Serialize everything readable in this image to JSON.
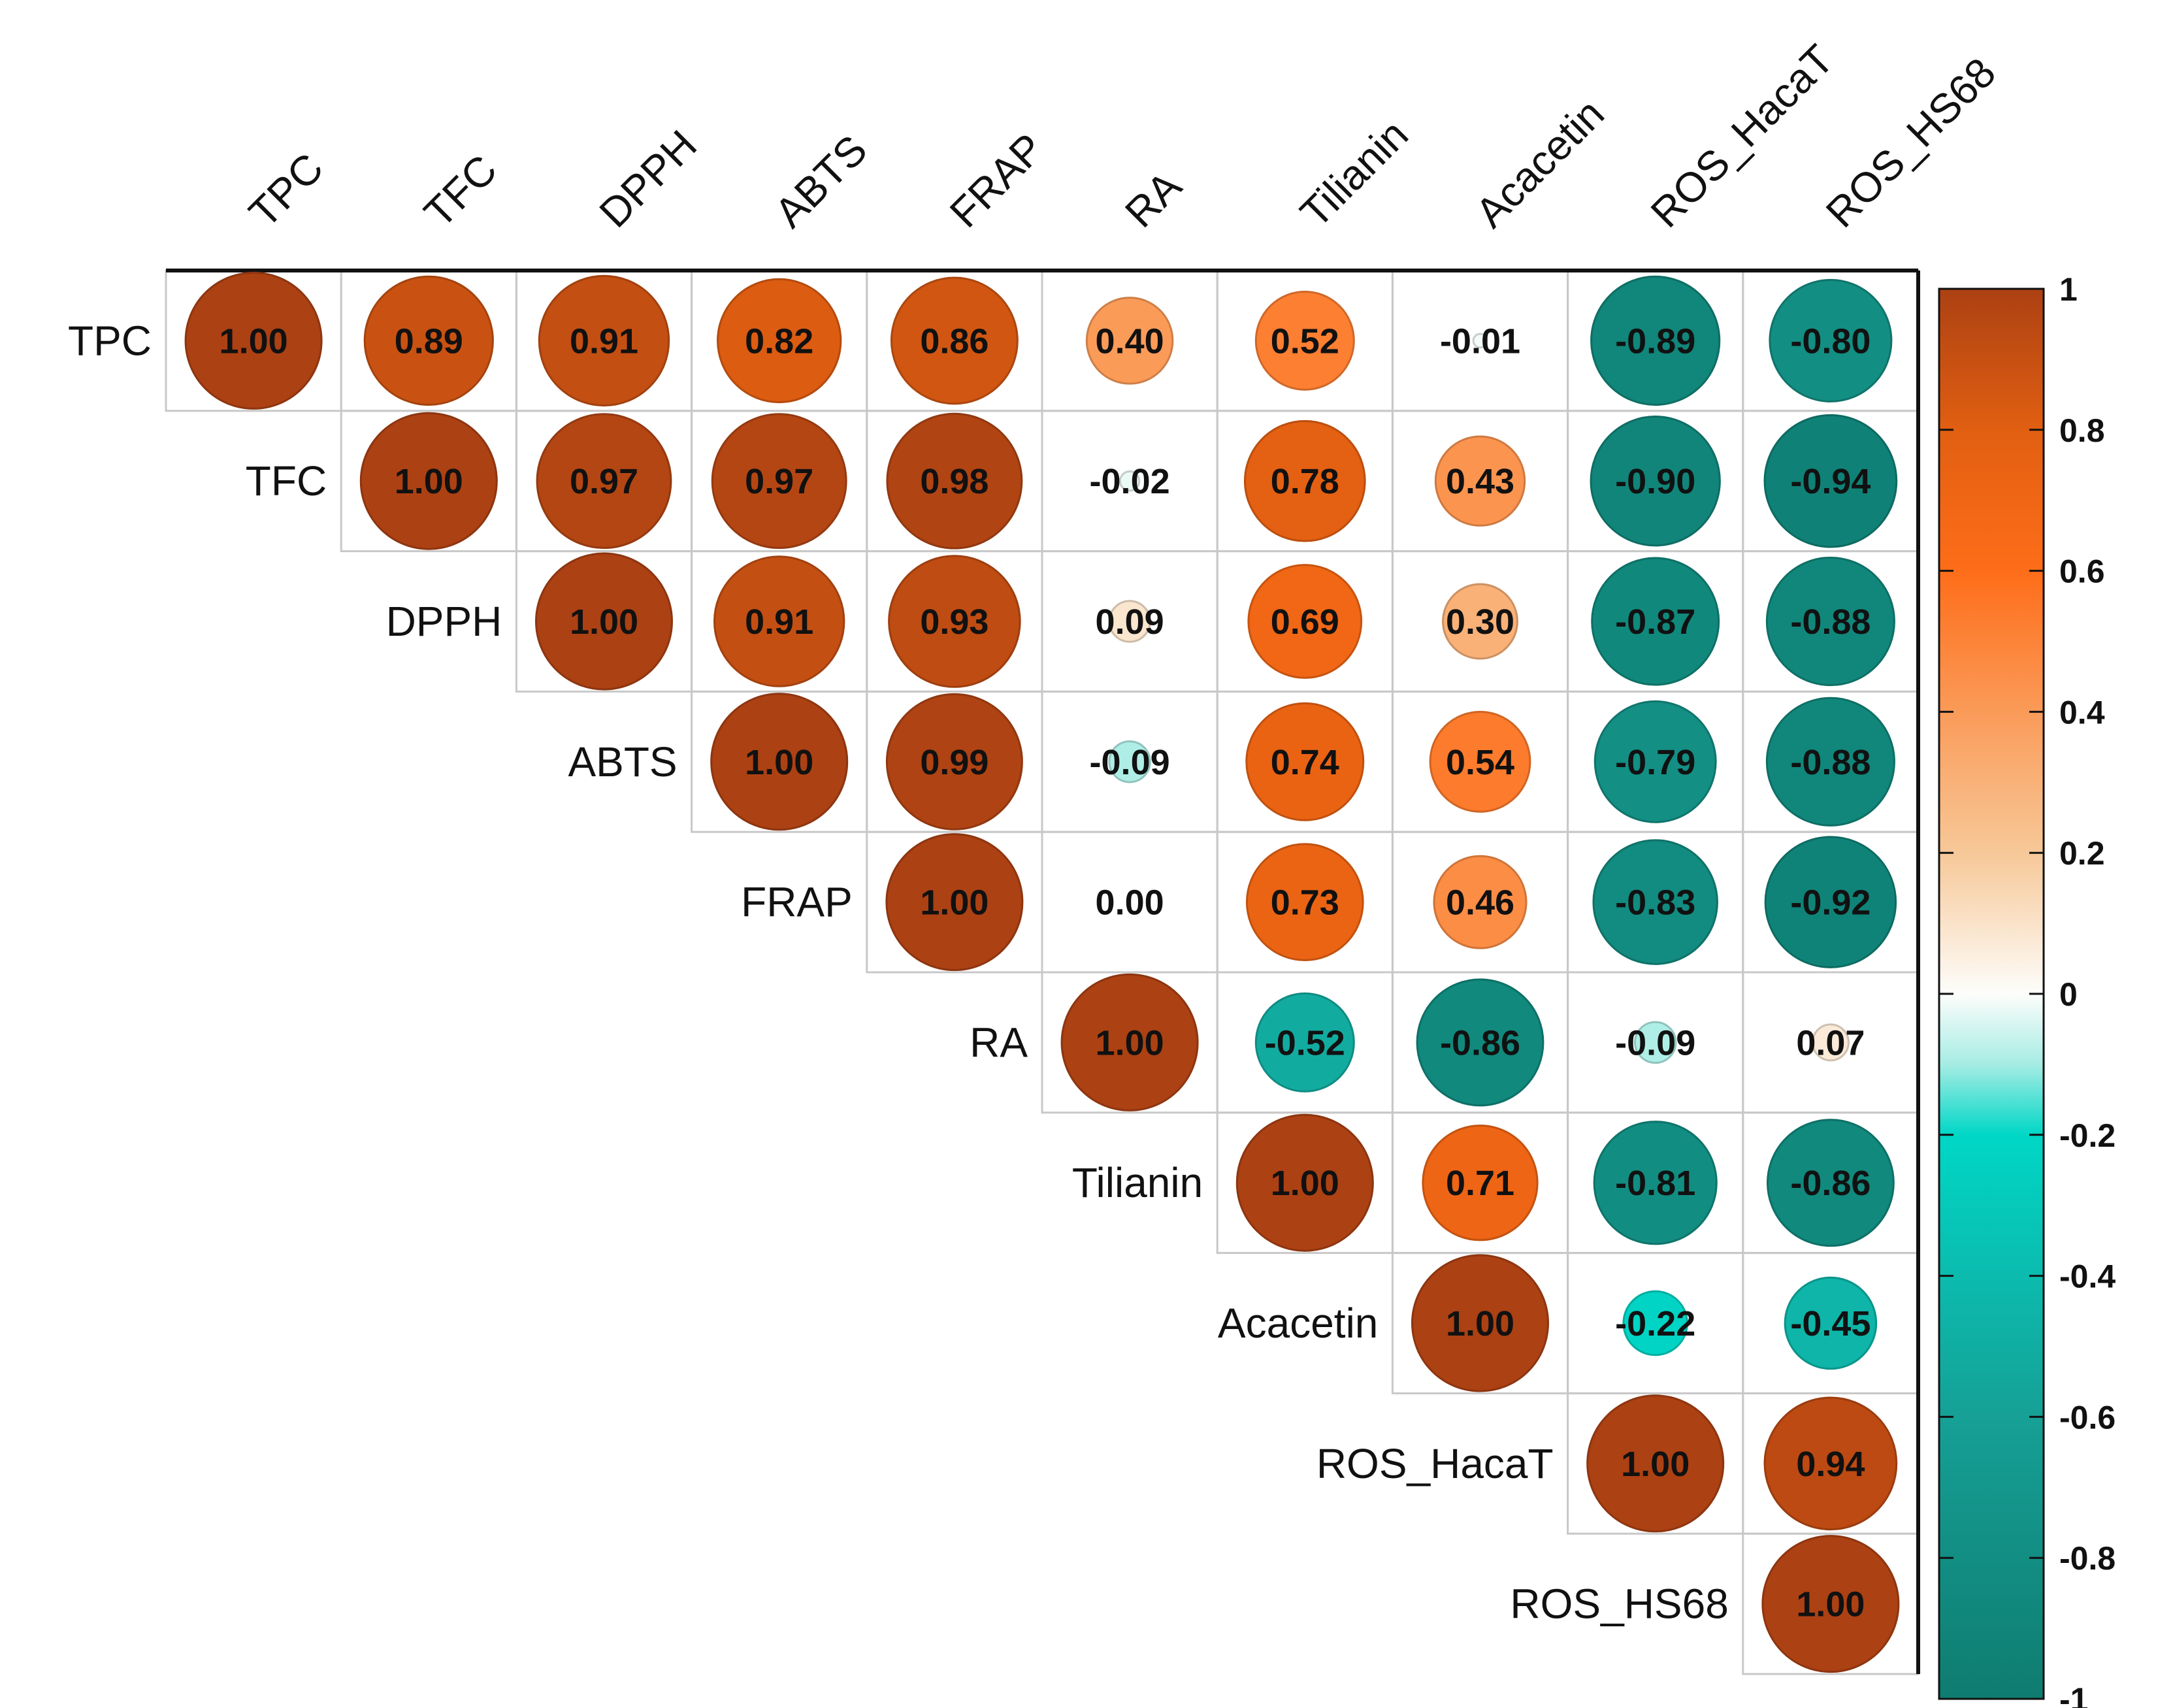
{
  "chart_data": {
    "type": "heatmap",
    "style": "correlation matrix, upper triangle, circle glyphs sized by |r|",
    "variables": [
      "TPC",
      "TFC",
      "DPPH",
      "ABTS",
      "FRAP",
      "RA",
      "Tilianin",
      "Acacetin",
      "ROS_HacaT",
      "ROS_HS68"
    ],
    "matrix": [
      [
        "1.00",
        "0.89",
        "0.91",
        "0.82",
        "0.86",
        "0.40",
        "0.52",
        "-0.01",
        "-0.89",
        "-0.80"
      ],
      [
        null,
        "1.00",
        "0.97",
        "0.97",
        "0.98",
        "-0.02",
        "0.78",
        "0.43",
        "-0.90",
        "-0.94"
      ],
      [
        null,
        null,
        "1.00",
        "0.91",
        "0.93",
        "0.09",
        "0.69",
        "0.30",
        "-0.87",
        "-0.88"
      ],
      [
        null,
        null,
        null,
        "1.00",
        "0.99",
        "-0.09",
        "0.74",
        "0.54",
        "-0.79",
        "-0.88"
      ],
      [
        null,
        null,
        null,
        null,
        "1.00",
        "0.00",
        "0.73",
        "0.46",
        "-0.83",
        "-0.92"
      ],
      [
        null,
        null,
        null,
        null,
        null,
        "1.00",
        "-0.52",
        "-0.86",
        "-0.09",
        "0.07"
      ],
      [
        null,
        null,
        null,
        null,
        null,
        null,
        "1.00",
        "0.71",
        "-0.81",
        "-0.86"
      ],
      [
        null,
        null,
        null,
        null,
        null,
        null,
        null,
        "1.00",
        "-0.22",
        "-0.45"
      ],
      [
        null,
        null,
        null,
        null,
        null,
        null,
        null,
        null,
        "1.00",
        "0.94"
      ],
      [
        null,
        null,
        null,
        null,
        null,
        null,
        null,
        null,
        null,
        "1.00"
      ]
    ],
    "color_scale": {
      "range": [
        -1,
        1
      ],
      "stops": [
        {
          "value": -1.0,
          "color": "#0f7c70"
        },
        {
          "value": -0.6,
          "color": "#16a096"
        },
        {
          "value": -0.2,
          "color": "#00d7c6"
        },
        {
          "value": -0.1,
          "color": "#a6ece4"
        },
        {
          "value": 0.0,
          "color": "#fdfdfb"
        },
        {
          "value": 0.2,
          "color": "#f7c898"
        },
        {
          "value": 0.6,
          "color": "#fe6d19"
        },
        {
          "value": 0.8,
          "color": "#e15f11"
        },
        {
          "value": 1.0,
          "color": "#ac4113"
        }
      ],
      "ticks": [
        "1",
        "0.8",
        "0.6",
        "0.4",
        "0.2",
        "0",
        "-0.2",
        "-0.4",
        "-0.6",
        "-0.8",
        "-1"
      ]
    },
    "legend_position": "right",
    "title": "",
    "xlabel": "",
    "ylabel": ""
  }
}
